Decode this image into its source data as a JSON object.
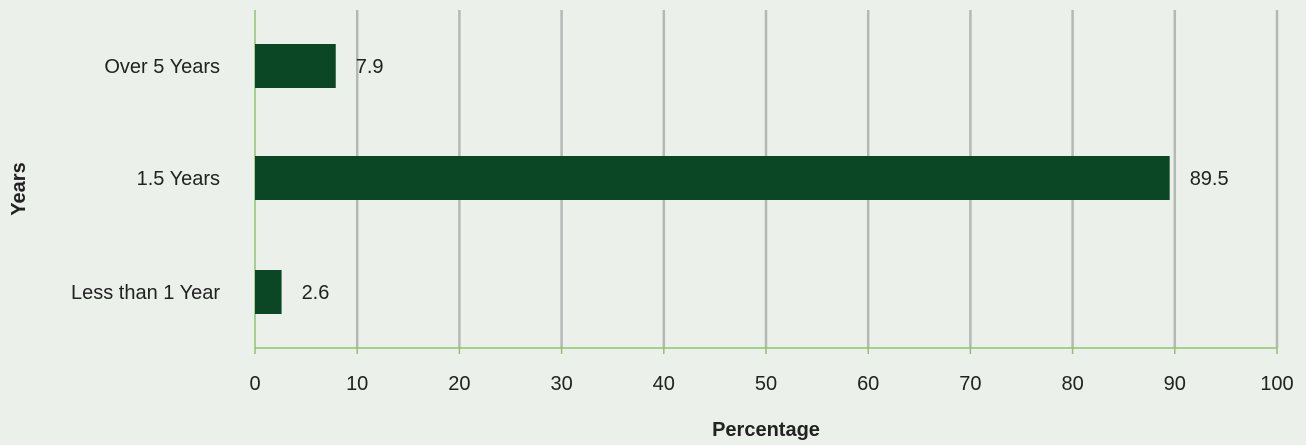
{
  "chart_data": {
    "type": "bar",
    "orientation": "horizontal",
    "title": "",
    "xlabel": "Percentage",
    "ylabel": "Years",
    "categories": [
      "Over 5 Years",
      "1.5 Years",
      "Less than 1 Year"
    ],
    "values": [
      7.9,
      89.5,
      2.6
    ],
    "value_labels": [
      "7.9",
      "89.5",
      "2.6"
    ],
    "xlim": [
      0,
      100
    ],
    "xticks": [
      0,
      10,
      20,
      30,
      40,
      50,
      60,
      70,
      80,
      90,
      100
    ],
    "grid": true,
    "legend": "none",
    "colors": {
      "bar": "#0b4724",
      "gridline": "#b5b9b6",
      "axis": "#8dc46a",
      "background": "#ecf0ea",
      "text": "#222222"
    }
  }
}
